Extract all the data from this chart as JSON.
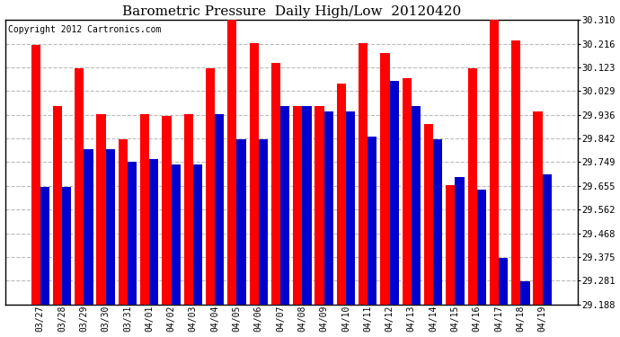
{
  "title": "Barometric Pressure  Daily High/Low  20120420",
  "copyright": "Copyright 2012 Cartronics.com",
  "dates": [
    "03/27",
    "03/28",
    "03/29",
    "03/30",
    "03/31",
    "04/01",
    "04/02",
    "04/03",
    "04/04",
    "04/05",
    "04/06",
    "04/07",
    "04/08",
    "04/09",
    "04/10",
    "04/11",
    "04/12",
    "04/13",
    "04/14",
    "04/15",
    "04/16",
    "04/17",
    "04/18",
    "04/19"
  ],
  "highs": [
    30.21,
    29.97,
    30.12,
    29.94,
    29.84,
    29.94,
    29.93,
    29.94,
    30.12,
    30.32,
    30.22,
    30.14,
    29.97,
    29.97,
    30.06,
    30.22,
    30.18,
    30.08,
    29.9,
    29.66,
    30.12,
    30.35,
    30.23,
    29.95
  ],
  "lows": [
    29.65,
    29.65,
    29.8,
    29.8,
    29.75,
    29.76,
    29.74,
    29.74,
    29.94,
    29.84,
    29.84,
    29.97,
    29.97,
    29.95,
    29.95,
    29.85,
    30.07,
    29.97,
    29.84,
    29.69,
    29.64,
    29.37,
    29.28,
    29.7
  ],
  "high_color": "#FF0000",
  "low_color": "#0000CC",
  "bg_color": "#FFFFFF",
  "plot_bg_color": "#FFFFFF",
  "grid_color": "#BBBBBB",
  "ymin": 29.188,
  "ymax": 30.31,
  "yticks": [
    29.188,
    29.281,
    29.375,
    29.468,
    29.562,
    29.655,
    29.749,
    29.842,
    29.936,
    30.029,
    30.123,
    30.216,
    30.31
  ],
  "title_fontsize": 11,
  "copyright_fontsize": 7
}
